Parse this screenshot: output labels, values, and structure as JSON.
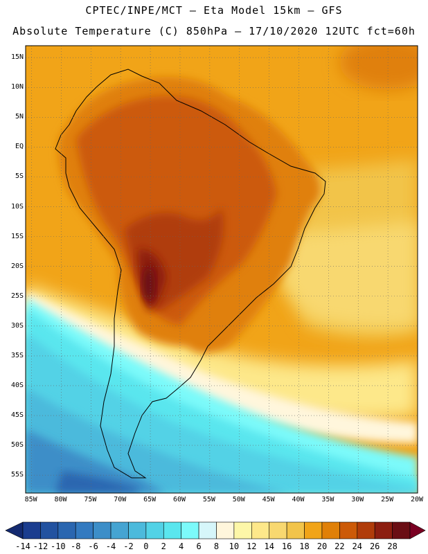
{
  "header": {
    "line1": "CPTEC/INPE/MCT –  Eta Model 15km – GFS",
    "line2": "Absolute Temperature (C) 850hPa – 17/10/2020 12UTC fct=60h"
  },
  "map": {
    "region": "South America",
    "variable": "Absolute Temperature (C) 850hPa",
    "lat_range": [
      -58,
      17
    ],
    "lon_range": [
      -86,
      -20
    ],
    "lat_labels": [
      "15N",
      "10N",
      "5N",
      "EQ",
      "5S",
      "10S",
      "15S",
      "20S",
      "25S",
      "30S",
      "35S",
      "40S",
      "45S",
      "50S",
      "55S"
    ],
    "lon_labels": [
      "85W",
      "80W",
      "75W",
      "70W",
      "65W",
      "60W",
      "55W",
      "50W",
      "45W",
      "40W",
      "35W",
      "30W",
      "25W",
      "20W"
    ]
  },
  "colorbar": {
    "labels": [
      "-14",
      "-12",
      "-10",
      "-8",
      "-6",
      "-4",
      "-2",
      "0",
      "2",
      "4",
      "6",
      "8",
      "10",
      "12",
      "14",
      "16",
      "18",
      "20",
      "22",
      "24",
      "26",
      "28"
    ],
    "colors": [
      "#1b3d8f",
      "#2252a0",
      "#2a66b0",
      "#337ac0",
      "#3c8ec8",
      "#45a4d2",
      "#4cbadc",
      "#52d2e6",
      "#5ae6ee",
      "#7cfafa",
      "#d6f6fa",
      "#fff6dc",
      "#fdf7a8",
      "#fde88a",
      "#f8d870",
      "#f2c44a",
      "#f1a418",
      "#e08008",
      "#cc5a08",
      "#b03c0a",
      "#8c1e10",
      "#6a0e14"
    ],
    "under_color": "#142a70",
    "over_color": "#7a0022"
  }
}
